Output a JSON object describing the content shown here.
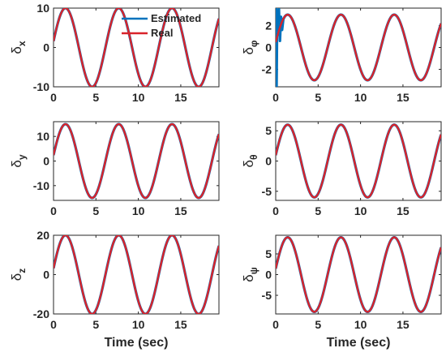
{
  "colors": {
    "estimated": "#0072BD",
    "real": "#D9242B",
    "axis": "#262626"
  },
  "chart_data": [
    {
      "type": "line",
      "ylabel": "δx",
      "ylabel_main": "δ",
      "ylabel_sub": "x",
      "xlim": [
        0,
        19.5
      ],
      "ylim": [
        -10,
        10
      ],
      "xticks": [
        0,
        5,
        10,
        15
      ],
      "xtick_labels": [
        "0",
        "5",
        "10",
        "15"
      ],
      "yticks": [
        -10,
        0,
        10
      ],
      "ytick_labels": [
        "-10",
        "0",
        "10"
      ],
      "signal": {
        "amplitude": 10,
        "period": 6.28,
        "phase": 0.16
      },
      "series": [
        {
          "name": "Estimated"
        },
        {
          "name": "Real"
        }
      ]
    },
    {
      "type": "line",
      "ylabel": "δφ",
      "ylabel_main": "δ",
      "ylabel_sub": "φ",
      "xlim": [
        0,
        19.5
      ],
      "ylim": [
        -3.6,
        3.6
      ],
      "xticks": [
        0,
        5,
        10,
        15
      ],
      "xtick_labels": [
        "0",
        "5",
        "10",
        "15"
      ],
      "yticks": [
        -2,
        0,
        2
      ],
      "ytick_labels": [
        "-2",
        "0",
        "2"
      ],
      "signal": {
        "amplitude": 3,
        "period": 6.28,
        "phase": 0.16
      },
      "estimated_transient": [
        [
          0,
          0
        ],
        [
          0.05,
          3.6
        ],
        [
          0.1,
          -3.6
        ],
        [
          0.18,
          3.4
        ],
        [
          0.28,
          1.2
        ],
        [
          0.38,
          3.5
        ],
        [
          0.5,
          0.6
        ],
        [
          0.62,
          2.8
        ],
        [
          0.75,
          1.6
        ],
        [
          0.9,
          2.6
        ],
        [
          1.05,
          2.8
        ]
      ],
      "series": [
        {
          "name": "Estimated"
        },
        {
          "name": "Real"
        }
      ]
    },
    {
      "type": "line",
      "ylabel": "δy",
      "ylabel_main": "δ",
      "ylabel_sub": "y",
      "xlim": [
        0,
        19.5
      ],
      "ylim": [
        -16,
        16
      ],
      "xticks": [
        0,
        5,
        10,
        15
      ],
      "xtick_labels": [
        "0",
        "5",
        "10",
        "15"
      ],
      "yticks": [
        -10,
        0,
        10
      ],
      "ytick_labels": [
        "-10",
        "0",
        "10"
      ],
      "signal": {
        "amplitude": 15,
        "period": 6.28,
        "phase": 0.16
      },
      "series": [
        {
          "name": "Estimated"
        },
        {
          "name": "Real"
        }
      ]
    },
    {
      "type": "line",
      "ylabel": "δθ",
      "ylabel_main": "δ",
      "ylabel_sub": "θ",
      "xlim": [
        0,
        19.5
      ],
      "ylim": [
        -6.5,
        6.5
      ],
      "xticks": [
        0,
        5,
        10,
        15
      ],
      "xtick_labels": [
        "0",
        "5",
        "10",
        "15"
      ],
      "yticks": [
        -5,
        0,
        5
      ],
      "ytick_labels": [
        "-5",
        "0",
        "5"
      ],
      "signal": {
        "amplitude": 6,
        "period": 6.28,
        "phase": 0.16
      },
      "series": [
        {
          "name": "Estimated"
        },
        {
          "name": "Real"
        }
      ]
    },
    {
      "type": "line",
      "ylabel": "δz",
      "ylabel_main": "δ",
      "ylabel_sub": "z",
      "xlim": [
        0,
        19.5
      ],
      "ylim": [
        -20,
        20
      ],
      "xticks": [
        0,
        5,
        10,
        15
      ],
      "xtick_labels": [
        "0",
        "5",
        "10",
        "15"
      ],
      "yticks": [
        -20,
        0,
        20
      ],
      "ytick_labels": [
        "-20",
        "0",
        "20"
      ],
      "xlabel": "Time (sec)",
      "signal": {
        "amplitude": 20,
        "period": 6.28,
        "phase": 0.16
      },
      "series": [
        {
          "name": "Estimated"
        },
        {
          "name": "Real"
        }
      ]
    },
    {
      "type": "line",
      "ylabel": "δψ",
      "ylabel_main": "δ",
      "ylabel_sub": "ψ",
      "xlim": [
        0,
        19.5
      ],
      "ylim": [
        -9.5,
        9.5
      ],
      "xticks": [
        0,
        5,
        10,
        15
      ],
      "xtick_labels": [
        "0",
        "5",
        "10",
        "15"
      ],
      "yticks": [
        -5,
        0,
        5
      ],
      "ytick_labels": [
        "-5",
        "0",
        "5"
      ],
      "xlabel": "Time (sec)",
      "signal": {
        "amplitude": 9,
        "period": 6.28,
        "phase": 0.16
      },
      "series": [
        {
          "name": "Estimated"
        },
        {
          "name": "Real"
        }
      ]
    }
  ],
  "legend": {
    "placement": "top-left panel, top-right",
    "items": [
      "Estimated",
      "Real"
    ]
  }
}
